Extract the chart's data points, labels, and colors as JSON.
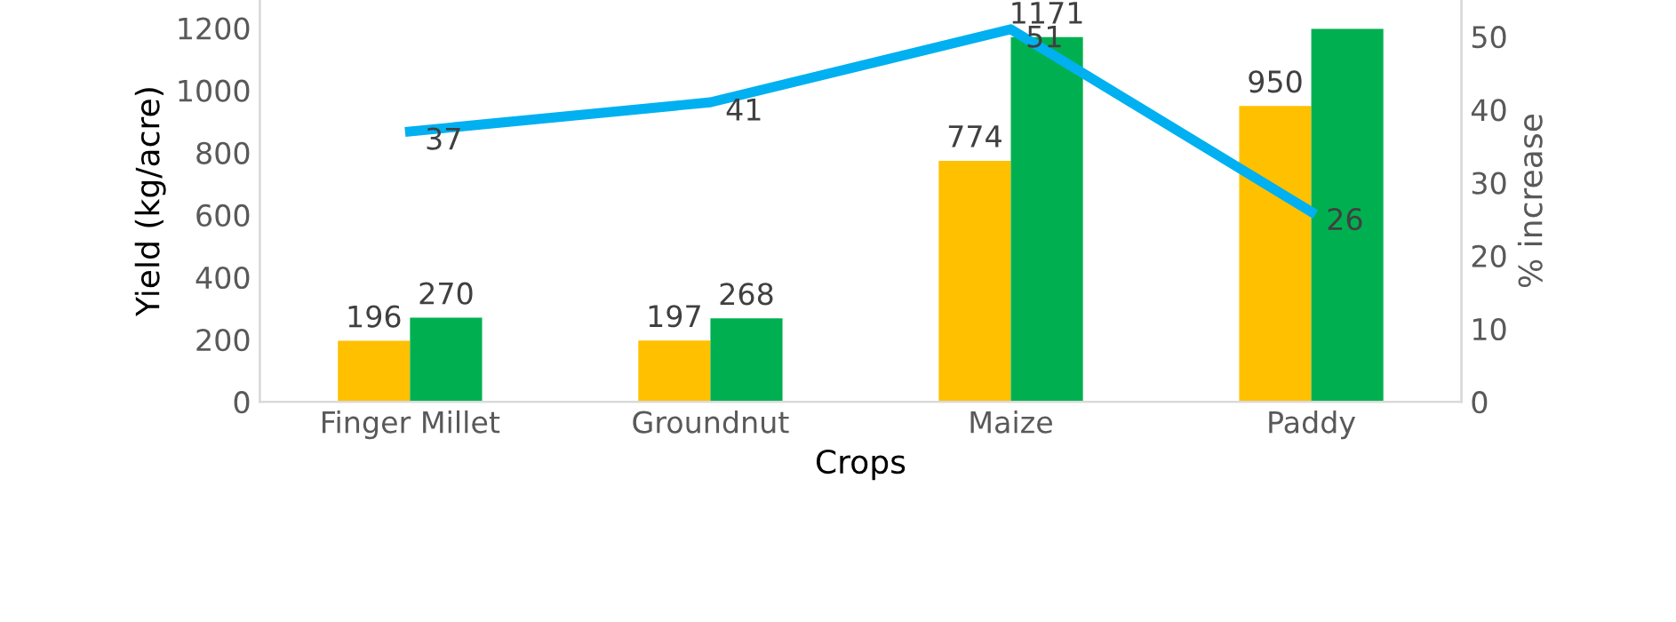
{
  "chart_data": {
    "type": "bar",
    "xlabel": "Crops",
    "ylabel": "Yield (kg/acre)",
    "y2label": "% increase",
    "categories": [
      "Finger Millet",
      "Groundnut",
      "Maize",
      "Paddy"
    ],
    "series": [
      {
        "color": "#ffc000",
        "values": [
          196,
          197,
          774,
          950
        ],
        "value_labels": [
          "196",
          "197",
          "774",
          "950"
        ]
      },
      {
        "color": "#00b050",
        "values": [
          270,
          268,
          1171,
          1197
        ],
        "value_labels": [
          "270",
          "268",
          "1171",
          null
        ]
      },
      {
        "type": "line",
        "axis": "y2",
        "color": "#00b0f0",
        "values": [
          37,
          41,
          51,
          26
        ],
        "value_labels": [
          "37",
          "41",
          "51",
          "26"
        ]
      }
    ],
    "ylim": [
      0,
      1290
    ],
    "yticks": [
      0,
      200,
      400,
      600,
      800,
      1000,
      1200
    ],
    "y2lim": [
      0,
      55
    ],
    "y2ticks": [
      0,
      10,
      20,
      30,
      40,
      50
    ],
    "grid": false,
    "legend": false,
    "marker": "none",
    "line_style": "solid"
  }
}
